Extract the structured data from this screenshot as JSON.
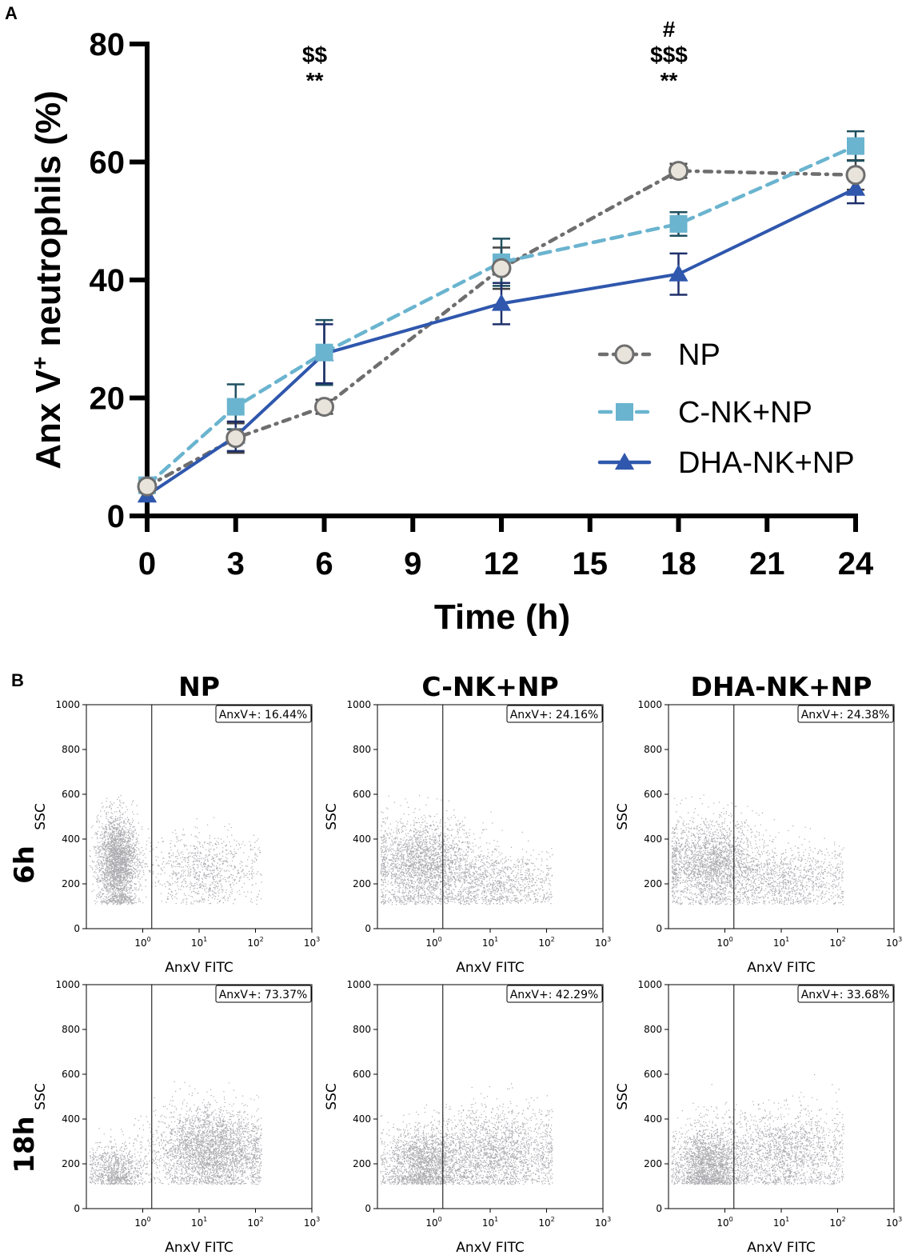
{
  "panels": {
    "a_label": "A",
    "b_label": "B"
  },
  "chart_data": [
    {
      "type": "line",
      "ylabel_main": "Anx V",
      "ylabel_sup": "+",
      "ylabel_rest": " neutrophils (%)",
      "xlabel": "Time (h)",
      "xlim": [
        0,
        24
      ],
      "ylim": [
        0,
        80
      ],
      "xticks": [
        0,
        3,
        6,
        9,
        12,
        15,
        18,
        21,
        24
      ],
      "yticks": [
        0,
        20,
        40,
        60,
        80
      ],
      "series": [
        {
          "name": "NP",
          "color": "#6e6e6e",
          "fill": "#e8e4dc",
          "marker": "circle",
          "dash": "dashdot",
          "x": [
            0,
            3,
            6,
            12,
            18,
            24
          ],
          "y": [
            5,
            13.2,
            18.5,
            42,
            58.5,
            57.8
          ],
          "err": [
            1,
            2.5,
            1.2,
            3.5,
            1.2,
            2.5
          ]
        },
        {
          "name": "C-NK+NP",
          "color": "#6ab4cf",
          "fill": "#6ab4cf",
          "marker": "square",
          "dash": "dashed",
          "x": [
            0,
            3,
            6,
            12,
            18,
            24
          ],
          "y": [
            5.2,
            18.5,
            27.7,
            43,
            49.5,
            62.7
          ],
          "err": [
            1,
            3.8,
            5.5,
            4,
            2,
            2.5
          ]
        },
        {
          "name": "DHA-NK+NP",
          "color": "#2f57ad",
          "fill": "#2f57ad",
          "marker": "triangle",
          "dash": "solid",
          "x": [
            0,
            3,
            6,
            12,
            18,
            24
          ],
          "y": [
            3.5,
            13.5,
            27.5,
            36,
            41,
            55.5
          ],
          "err": [
            1,
            2.5,
            5,
            3.5,
            3.5,
            2.5
          ]
        }
      ],
      "annotations": [
        {
          "x": 6,
          "lines": [
            "$$",
            "**"
          ]
        },
        {
          "x": 18,
          "lines": [
            "#",
            "$$$",
            "**"
          ]
        }
      ]
    },
    {
      "type": "scatter",
      "description": "Flow cytometry dot plots",
      "columns": [
        "NP",
        "C-NK+NP",
        "DHA-NK+NP"
      ],
      "rows": [
        "6h",
        "18h"
      ],
      "xlabel": "AnxV FITC",
      "ylabel": "SSC",
      "x_scale": "log",
      "x_ticks": [
        {
          "base": "10",
          "exp": "0"
        },
        {
          "base": "10",
          "exp": "1"
        },
        {
          "base": "10",
          "exp": "2"
        },
        {
          "base": "10",
          "exp": "3"
        }
      ],
      "y_ticks": [
        "0",
        "200",
        "400",
        "600",
        "800",
        "1000"
      ],
      "ylim": [
        0,
        1000
      ],
      "gate_label_prefix": "AnxV+: ",
      "gate_values": [
        [
          "16.44%",
          "24.16%",
          "24.38%"
        ],
        [
          "73.37%",
          "42.29%",
          "33.68%"
        ]
      ]
    }
  ]
}
